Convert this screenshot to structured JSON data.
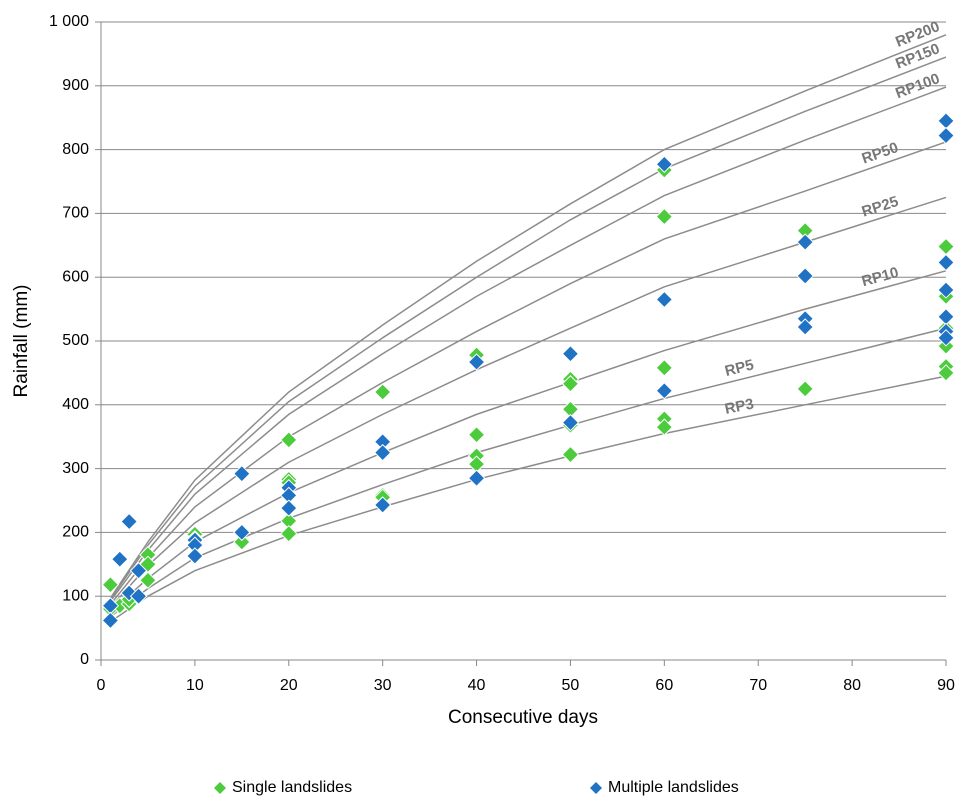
{
  "chart_data": {
    "type": "scatter",
    "x_label": "Consecutive days",
    "y_label": "Rainfall (mm)",
    "xlim": [
      0,
      90
    ],
    "xticks": [
      0,
      10,
      20,
      30,
      40,
      50,
      60,
      70,
      80,
      90
    ],
    "ylim": [
      0,
      1000
    ],
    "yticks": [
      0,
      100,
      200,
      300,
      400,
      500,
      600,
      700,
      800,
      900,
      {
        "value": 1000,
        "label": "1 000"
      }
    ],
    "grid": true,
    "legend": "bottom",
    "series": [
      {
        "name": "Single landslides",
        "color": "#4ccc3c",
        "x": [
          1,
          1,
          2,
          3,
          3,
          5,
          5,
          5,
          10,
          10,
          15,
          20,
          20,
          20,
          20,
          20,
          30,
          30,
          30,
          40,
          40,
          40,
          40,
          50,
          50,
          50,
          50,
          50,
          60,
          60,
          60,
          60,
          60,
          75,
          75,
          90,
          90,
          90,
          90,
          90,
          90
        ],
        "values": [
          118,
          80,
          85,
          88,
          95,
          165,
          150,
          125,
          197,
          190,
          185,
          345,
          283,
          278,
          218,
          198,
          420,
          258,
          255,
          478,
          353,
          320,
          307,
          440,
          433,
          393,
          368,
          322,
          768,
          695,
          458,
          378,
          365,
          673,
          425,
          648,
          570,
          520,
          492,
          460,
          450
        ]
      },
      {
        "name": "Multiple landslides",
        "color": "#1f72c4",
        "x": [
          1,
          1,
          2,
          3,
          3,
          4,
          4,
          10,
          10,
          10,
          15,
          15,
          20,
          20,
          20,
          30,
          30,
          30,
          40,
          40,
          50,
          50,
          60,
          60,
          60,
          75,
          75,
          75,
          75,
          90,
          90,
          90,
          90,
          90,
          90,
          90
        ],
        "values": [
          85,
          62,
          158,
          217,
          105,
          140,
          100,
          188,
          180,
          163,
          292,
          200,
          270,
          258,
          238,
          342,
          325,
          243,
          467,
          285,
          480,
          372,
          777,
          565,
          422,
          655,
          602,
          535,
          522,
          845,
          822,
          623,
          580,
          538,
          515,
          505
        ]
      }
    ],
    "curve_color": "#8c8c8c",
    "curves_x": [
      1,
      5,
      10,
      20,
      30,
      40,
      50,
      60,
      75,
      90
    ],
    "curves": [
      {
        "name": "RP3",
        "values": [
          60,
          100,
          140,
          195,
          240,
          283,
          320,
          355,
          400,
          445
        ]
      },
      {
        "name": "RP5",
        "values": [
          68,
          112,
          160,
          222,
          275,
          325,
          368,
          410,
          465,
          520
        ]
      },
      {
        "name": "RP10",
        "values": [
          75,
          128,
          185,
          262,
          325,
          385,
          435,
          485,
          550,
          610
        ]
      },
      {
        "name": "RP25",
        "values": [
          82,
          148,
          215,
          310,
          385,
          455,
          520,
          585,
          655,
          725
        ]
      },
      {
        "name": "RP50",
        "values": [
          87,
          160,
          240,
          350,
          435,
          515,
          590,
          660,
          735,
          812
        ]
      },
      {
        "name": "RP100",
        "values": [
          92,
          172,
          260,
          385,
          480,
          570,
          650,
          728,
          815,
          898
        ]
      },
      {
        "name": "RP150",
        "values": [
          95,
          180,
          272,
          405,
          505,
          600,
          690,
          770,
          860,
          945
        ]
      },
      {
        "name": "RP200",
        "values": [
          97,
          185,
          282,
          420,
          525,
          625,
          715,
          800,
          892,
          980
        ]
      }
    ]
  }
}
